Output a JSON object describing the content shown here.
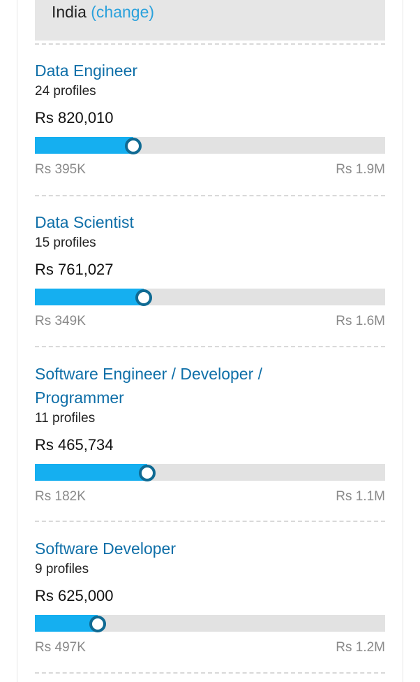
{
  "location": {
    "country": "India",
    "change_label": "(change)"
  },
  "jobs": [
    {
      "title": "Data Engineer",
      "profiles": "24 profiles",
      "salary": "Rs 820,010",
      "min": "Rs 395K",
      "max": "Rs 1.9M",
      "bar_fraction": 0.28
    },
    {
      "title": "Data Scientist",
      "profiles": "15 profiles",
      "salary": "Rs 761,027",
      "min": "Rs 349K",
      "max": "Rs 1.6M",
      "bar_fraction": 0.31
    },
    {
      "title": "Software Engineer / Developer / Programmer",
      "profiles": "11 profiles",
      "salary": "Rs 465,734",
      "min": "Rs 182K",
      "max": "Rs 1.1M",
      "bar_fraction": 0.32
    },
    {
      "title": "Software Developer",
      "profiles": "9 profiles",
      "salary": "Rs 625,000",
      "min": "Rs 497K",
      "max": "Rs 1.2M",
      "bar_fraction": 0.18
    }
  ],
  "colors": {
    "link": "#2aa1dc",
    "title": "#0f6fa8",
    "bar_fill": "#15aff0",
    "bar_track": "#e2e2e2",
    "knob_border": "#0f6a93"
  }
}
